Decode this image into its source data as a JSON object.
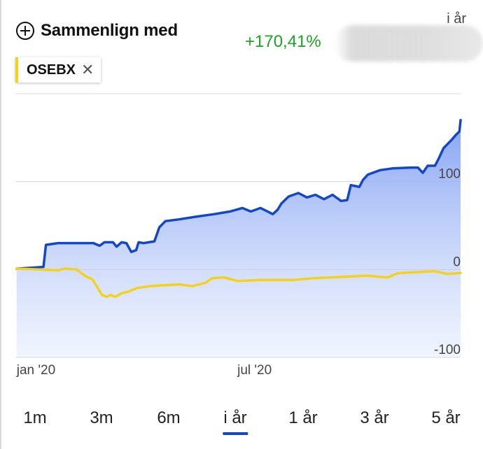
{
  "header": {
    "compare_label": "Sammenlign med",
    "change": "+170,41%",
    "period": "i år"
  },
  "compare_chip": {
    "label": "OSEBX"
  },
  "colors": {
    "stock": "#1446c8",
    "index": "#f5d21a",
    "change_positive": "#1aa526",
    "active_period": "#1446c8"
  },
  "chart_data": {
    "type": "area",
    "title": "",
    "xlabel": "",
    "ylabel": "",
    "ylim": [
      -100,
      200
    ],
    "y_ticks": [
      100,
      0,
      -100
    ],
    "y_tick_labels": [
      "100",
      "0",
      "-100"
    ],
    "x_tick_labels": [
      {
        "label": "jan '20",
        "date": "2020-01-02"
      },
      {
        "label": "jul '20",
        "date": "2020-07-01"
      }
    ],
    "grid": true,
    "series": [
      {
        "color": "#1446c8",
        "area": true,
        "points": [
          [
            "2020-01-02",
            1
          ],
          [
            "2020-01-15",
            2
          ],
          [
            "2020-01-24",
            3
          ],
          [
            "2020-01-26",
            28
          ],
          [
            "2020-02-05",
            30
          ],
          [
            "2020-02-20",
            30
          ],
          [
            "2020-03-05",
            30
          ],
          [
            "2020-03-10",
            27
          ],
          [
            "2020-03-14",
            31
          ],
          [
            "2020-03-21",
            31
          ],
          [
            "2020-03-24",
            26
          ],
          [
            "2020-03-28",
            31
          ],
          [
            "2020-04-01",
            30
          ],
          [
            "2020-04-05",
            20
          ],
          [
            "2020-04-09",
            22
          ],
          [
            "2020-04-11",
            31
          ],
          [
            "2020-04-15",
            30
          ],
          [
            "2020-04-24",
            32
          ],
          [
            "2020-04-28",
            48
          ],
          [
            "2020-05-03",
            55
          ],
          [
            "2020-05-14",
            57
          ],
          [
            "2020-05-28",
            60
          ],
          [
            "2020-06-12",
            63
          ],
          [
            "2020-06-25",
            66
          ],
          [
            "2020-07-05",
            70
          ],
          [
            "2020-07-12",
            66
          ],
          [
            "2020-07-20",
            70
          ],
          [
            "2020-07-30",
            63
          ],
          [
            "2020-08-03",
            68
          ],
          [
            "2020-08-06",
            75
          ],
          [
            "2020-08-12",
            83
          ],
          [
            "2020-08-20",
            87
          ],
          [
            "2020-08-27",
            82
          ],
          [
            "2020-09-03",
            85
          ],
          [
            "2020-09-10",
            80
          ],
          [
            "2020-09-17",
            85
          ],
          [
            "2020-09-24",
            78
          ],
          [
            "2020-09-29",
            79
          ],
          [
            "2020-10-02",
            96
          ],
          [
            "2020-10-09",
            94
          ],
          [
            "2020-10-12",
            102
          ],
          [
            "2020-10-16",
            108
          ],
          [
            "2020-10-26",
            113
          ],
          [
            "2020-11-05",
            115
          ],
          [
            "2020-11-20",
            116
          ],
          [
            "2020-11-26",
            116
          ],
          [
            "2020-11-30",
            110
          ],
          [
            "2020-12-04",
            118
          ],
          [
            "2020-12-10",
            118
          ],
          [
            "2020-12-13",
            126
          ],
          [
            "2020-12-17",
            138
          ],
          [
            "2020-12-24",
            148
          ],
          [
            "2020-12-27",
            153
          ],
          [
            "2020-12-30",
            157
          ],
          [
            "2020-12-31",
            170
          ]
        ]
      },
      {
        "color": "#f5d21a",
        "area": false,
        "points": [
          [
            "2020-01-02",
            1
          ],
          [
            "2020-01-20",
            0
          ],
          [
            "2020-02-05",
            -1
          ],
          [
            "2020-02-10",
            1
          ],
          [
            "2020-02-20",
            0
          ],
          [
            "2020-02-28",
            -8
          ],
          [
            "2020-03-04",
            -11
          ],
          [
            "2020-03-09",
            -22
          ],
          [
            "2020-03-12",
            -29
          ],
          [
            "2020-03-16",
            -31
          ],
          [
            "2020-03-19",
            -29
          ],
          [
            "2020-03-23",
            -31
          ],
          [
            "2020-03-28",
            -27
          ],
          [
            "2020-04-03",
            -25
          ],
          [
            "2020-04-10",
            -21
          ],
          [
            "2020-04-20",
            -19
          ],
          [
            "2020-04-30",
            -18
          ],
          [
            "2020-05-15",
            -17
          ],
          [
            "2020-05-25",
            -19
          ],
          [
            "2020-06-05",
            -15
          ],
          [
            "2020-06-10",
            -10
          ],
          [
            "2020-06-20",
            -9
          ],
          [
            "2020-07-01",
            -13
          ],
          [
            "2020-07-20",
            -12
          ],
          [
            "2020-08-01",
            -12
          ],
          [
            "2020-08-15",
            -12
          ],
          [
            "2020-09-01",
            -10
          ],
          [
            "2020-09-15",
            -9
          ],
          [
            "2020-10-01",
            -8
          ],
          [
            "2020-10-15",
            -7
          ],
          [
            "2020-11-01",
            -9
          ],
          [
            "2020-11-10",
            -4
          ],
          [
            "2020-11-25",
            -3
          ],
          [
            "2020-12-10",
            -2
          ],
          [
            "2020-12-20",
            -5
          ],
          [
            "2020-12-31",
            -4
          ]
        ]
      }
    ]
  },
  "periods": [
    {
      "label": "1m",
      "active": false
    },
    {
      "label": "3m",
      "active": false
    },
    {
      "label": "6m",
      "active": false
    },
    {
      "label": "i år",
      "active": true
    },
    {
      "label": "1 år",
      "active": false
    },
    {
      "label": "3 år",
      "active": false
    },
    {
      "label": "5 år",
      "active": false
    }
  ]
}
